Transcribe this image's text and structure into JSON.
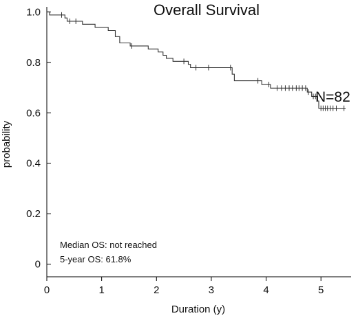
{
  "chart_data": {
    "type": "line",
    "title": "Overall Survival",
    "xlabel": "Duration (y)",
    "ylabel": "probability",
    "xlim": [
      0,
      5.55
    ],
    "ylim": [
      -0.05,
      1.02
    ],
    "x_ticks": [
      0,
      1,
      2,
      3,
      4,
      5
    ],
    "y_ticks": [
      0,
      0.2,
      0.4,
      0.6,
      0.8,
      1.0
    ],
    "x_tick_labels": [
      "0",
      "1",
      "2",
      "3",
      "4",
      "5"
    ],
    "y_tick_labels": [
      "0",
      "0.2",
      "0.4",
      "0.6",
      "0.8",
      "1.0"
    ],
    "series": [
      {
        "name": "N=82",
        "steps": [
          [
            0.0,
            1.0
          ],
          [
            0.05,
            0.988
          ],
          [
            0.33,
            0.976
          ],
          [
            0.37,
            0.963
          ],
          [
            0.65,
            0.951
          ],
          [
            0.88,
            0.939
          ],
          [
            1.12,
            0.926
          ],
          [
            1.25,
            0.902
          ],
          [
            1.33,
            0.877
          ],
          [
            1.52,
            0.865
          ],
          [
            1.85,
            0.853
          ],
          [
            2.03,
            0.841
          ],
          [
            2.12,
            0.828
          ],
          [
            2.18,
            0.816
          ],
          [
            2.3,
            0.804
          ],
          [
            2.58,
            0.792
          ],
          [
            2.62,
            0.779
          ],
          [
            3.38,
            0.753
          ],
          [
            3.42,
            0.727
          ],
          [
            3.92,
            0.712
          ],
          [
            4.08,
            0.698
          ],
          [
            4.75,
            0.682
          ],
          [
            4.83,
            0.665
          ],
          [
            4.94,
            0.647
          ],
          [
            4.96,
            0.618
          ],
          [
            5.45,
            0.618
          ]
        ],
        "censored_x": [
          0.27,
          0.42,
          0.53,
          1.55,
          2.5,
          2.72,
          2.95,
          3.35,
          3.85,
          4.05,
          4.2,
          4.28,
          4.35,
          4.42,
          4.48,
          4.55,
          4.6,
          4.66,
          4.72,
          4.77,
          4.86,
          4.9,
          5.0,
          5.04,
          5.08,
          5.12,
          5.17,
          5.22,
          5.28,
          5.42
        ]
      }
    ],
    "annotations": {
      "n_label": "N=82",
      "median_os": "Median OS: not reached",
      "five_year_os": "5-year OS: 61.8%"
    }
  }
}
